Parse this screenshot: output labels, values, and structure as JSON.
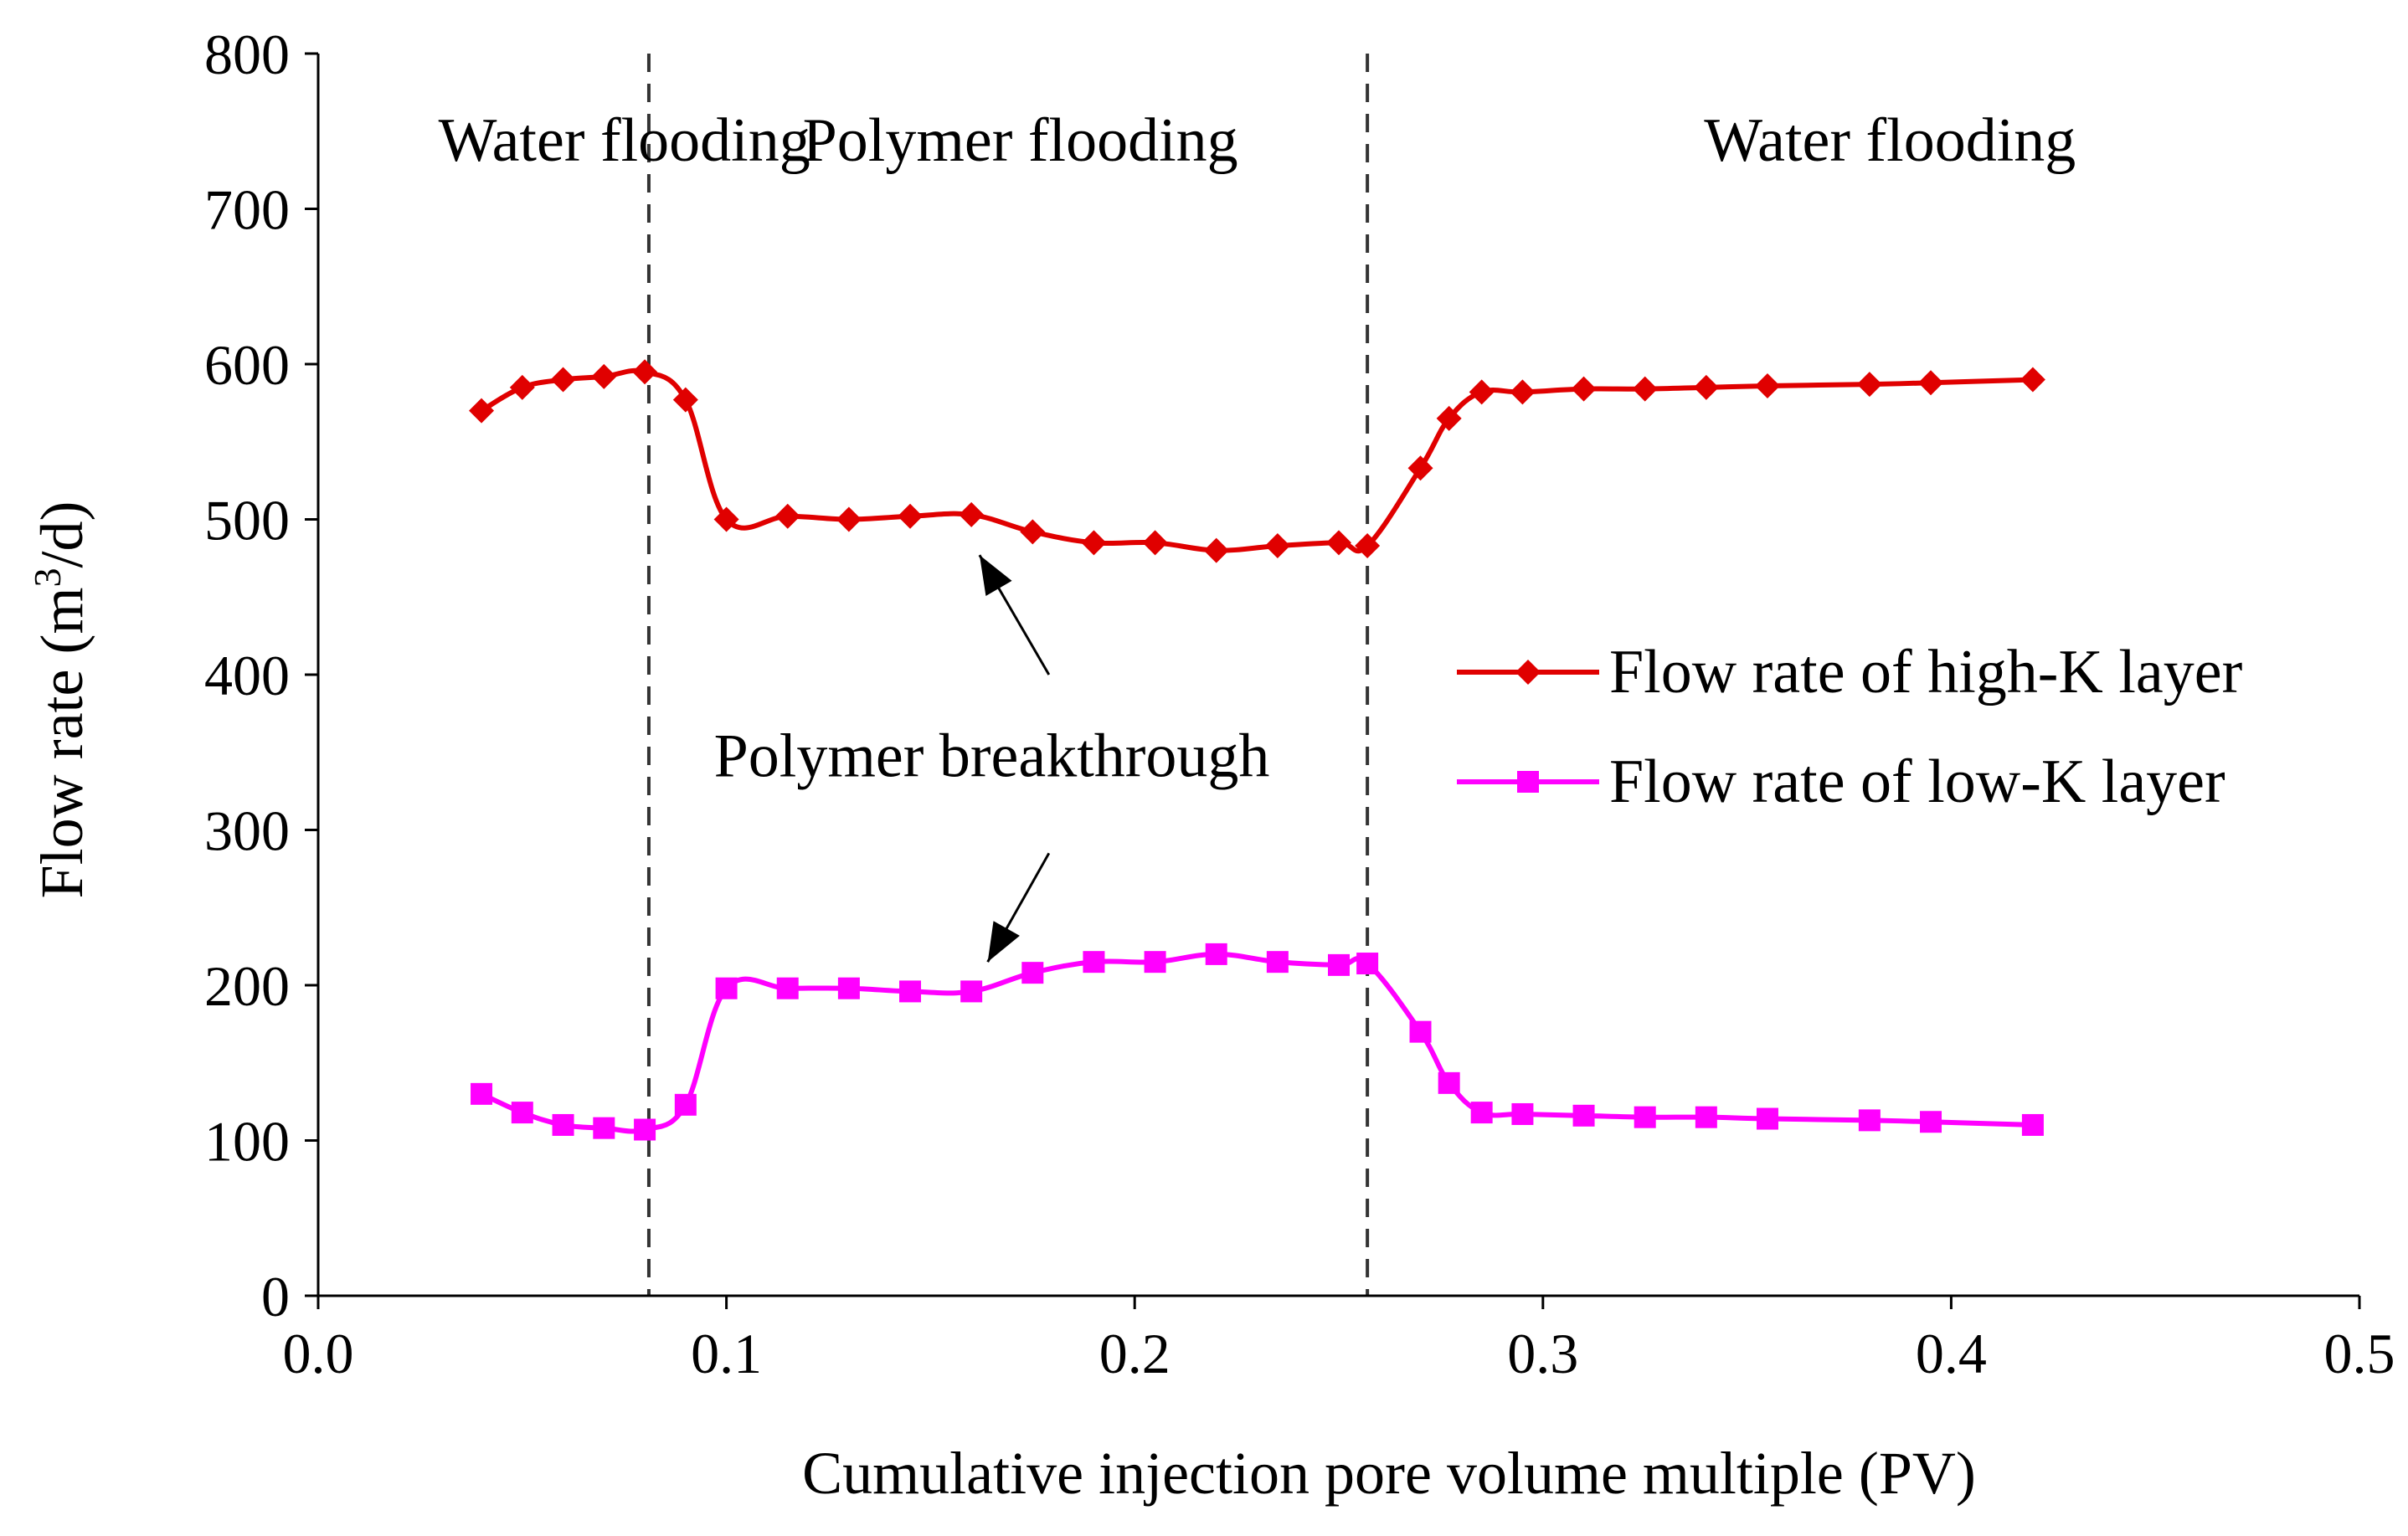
{
  "chart_data": {
    "type": "line",
    "title": "",
    "xlabel": "Cumulative injection pore volume multiple (PV)",
    "ylabel": "Flow rate (m",
    "ylabel_sup": "3",
    "ylabel_tail": "/d)",
    "xlim": [
      0.0,
      0.5
    ],
    "ylim": [
      0,
      800
    ],
    "xticks": [
      "0.0",
      "0.1",
      "0.2",
      "0.3",
      "0.4",
      "0.5"
    ],
    "yticks": [
      "0",
      "100",
      "200",
      "300",
      "400",
      "500",
      "600",
      "700",
      "800"
    ],
    "grid": false,
    "legend_position": "right-middle",
    "phase_boundaries": [
      0.081,
      0.257
    ],
    "phases": [
      {
        "label": "Water flooding",
        "x": 0.04
      },
      {
        "label": "Polymer flooding",
        "x": 0.17
      },
      {
        "label": "Water flooding",
        "x": 0.385
      }
    ],
    "annotation": {
      "label": "Polymer breakthrough",
      "label_x": 0.165,
      "label_y": 340,
      "arrows": [
        {
          "from": [
            0.179,
            400
          ],
          "to": [
            0.162,
            477
          ]
        },
        {
          "from": [
            0.179,
            285
          ],
          "to": [
            0.164,
            215
          ]
        }
      ]
    },
    "series": [
      {
        "name": "Flow rate of high-K layer",
        "color": "#e00000",
        "marker": "diamond",
        "x": [
          0.04,
          0.05,
          0.06,
          0.07,
          0.08,
          0.09,
          0.1,
          0.115,
          0.13,
          0.145,
          0.16,
          0.175,
          0.19,
          0.205,
          0.22,
          0.235,
          0.25,
          0.257,
          0.27,
          0.277,
          0.285,
          0.295,
          0.31,
          0.325,
          0.34,
          0.355,
          0.38,
          0.395,
          0.42
        ],
        "y": [
          570,
          585,
          590,
          592,
          595,
          577,
          500,
          502,
          500,
          502,
          503,
          492,
          485,
          485,
          480,
          483,
          485,
          483,
          533,
          565,
          582,
          582,
          584,
          584,
          585,
          586,
          587,
          588,
          590
        ]
      },
      {
        "name": "Flow rate of low-K layer",
        "color": "#ff00ff",
        "marker": "square",
        "x": [
          0.04,
          0.05,
          0.06,
          0.07,
          0.08,
          0.09,
          0.1,
          0.115,
          0.13,
          0.145,
          0.16,
          0.175,
          0.19,
          0.205,
          0.22,
          0.235,
          0.25,
          0.257,
          0.27,
          0.277,
          0.285,
          0.295,
          0.31,
          0.325,
          0.34,
          0.355,
          0.38,
          0.395,
          0.42
        ],
        "y": [
          130,
          118,
          110,
          108,
          107,
          123,
          198,
          198,
          198,
          196,
          196,
          208,
          215,
          215,
          220,
          215,
          213,
          214,
          170,
          137,
          118,
          117,
          116,
          115,
          115,
          114,
          113,
          112,
          110
        ]
      }
    ]
  }
}
